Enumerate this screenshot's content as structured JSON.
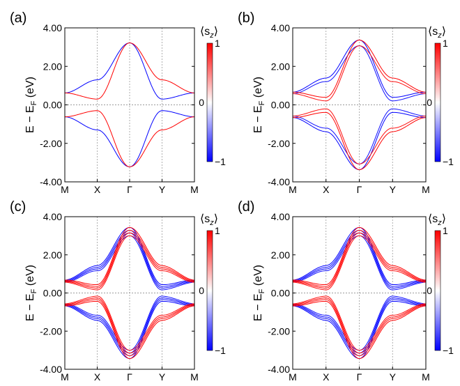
{
  "figure": {
    "colorbar": {
      "label": "⟨s_z⟩",
      "label_main": "⟨s",
      "label_sub": "z",
      "label_close": "⟩",
      "max_label": "1",
      "mid_label": "0",
      "min_label": "−1",
      "colors": {
        "negative": "#0000ff",
        "neutral": "#ffffff",
        "positive": "#ff0000"
      }
    },
    "ylabel_parts": {
      "main": "E − E",
      "sub": "F",
      "unit": " (eV)"
    }
  },
  "chart_data": [
    {
      "panel": "(a)",
      "type": "line",
      "title": "",
      "xlabel": "",
      "ylabel": "E − E_F (eV)",
      "x_ticks": [
        "M",
        "X",
        "Γ",
        "Y",
        "M"
      ],
      "y_ticks": [
        "4.00",
        "2.00",
        "0.00",
        "-2.00",
        "-4.00"
      ],
      "ylim": [
        -4,
        4
      ],
      "x_positions": [
        0,
        1,
        2,
        3,
        4
      ],
      "band_splitting": [
        0.0
      ],
      "series": [
        {
          "name": "conduction band, spin-down",
          "sz": -1,
          "x": [
            0,
            1,
            2,
            3,
            4
          ],
          "y": [
            0.62,
            1.3,
            3.22,
            0.3,
            0.62
          ]
        },
        {
          "name": "conduction band, spin-up",
          "sz": 1,
          "x": [
            0,
            1,
            2,
            3,
            4
          ],
          "y": [
            0.62,
            0.3,
            3.22,
            1.3,
            0.62
          ]
        },
        {
          "name": "valence band, spin-down",
          "sz": -1,
          "x": [
            0,
            1,
            2,
            3,
            4
          ],
          "y": [
            -0.62,
            -1.3,
            -3.22,
            -0.3,
            -0.62
          ]
        },
        {
          "name": "valence band, spin-up",
          "sz": 1,
          "x": [
            0,
            1,
            2,
            3,
            4
          ],
          "y": [
            -0.62,
            -0.3,
            -3.22,
            -1.3,
            -0.62
          ]
        }
      ]
    },
    {
      "panel": "(b)",
      "type": "line",
      "title": "",
      "xlabel": "",
      "ylabel": "E − E_F (eV)",
      "x_ticks": [
        "M",
        "X",
        "Γ",
        "Y",
        "M"
      ],
      "y_ticks": [
        "4.00",
        "2.00",
        "0.00",
        "-2.00",
        "-4.00"
      ],
      "ylim": [
        -4,
        4
      ],
      "x_positions": [
        0,
        1,
        2,
        3,
        4
      ],
      "band_splitting": [
        0.15,
        -0.15
      ],
      "series": [
        {
          "name": "conduction band, spin-down",
          "sz": -1,
          "x": [
            0,
            1,
            2,
            3,
            4
          ],
          "y": [
            0.62,
            1.3,
            3.22,
            0.3,
            0.62
          ]
        },
        {
          "name": "conduction band, spin-up",
          "sz": 1,
          "x": [
            0,
            1,
            2,
            3,
            4
          ],
          "y": [
            0.62,
            0.3,
            3.22,
            1.3,
            0.62
          ]
        },
        {
          "name": "valence band, spin-down",
          "sz": -1,
          "x": [
            0,
            1,
            2,
            3,
            4
          ],
          "y": [
            -0.62,
            -1.3,
            -3.22,
            -0.3,
            -0.62
          ]
        },
        {
          "name": "valence band, spin-up",
          "sz": 1,
          "x": [
            0,
            1,
            2,
            3,
            4
          ],
          "y": [
            -0.62,
            -0.3,
            -3.22,
            -1.3,
            -0.62
          ]
        }
      ]
    },
    {
      "panel": "(c)",
      "type": "line",
      "title": "",
      "xlabel": "",
      "ylabel": "E − E_F (eV)",
      "x_ticks": [
        "M",
        "X",
        "Γ",
        "Y",
        "M"
      ],
      "y_ticks": [
        "4.00",
        "2.00",
        "0.00",
        "-2.00",
        "-4.00"
      ],
      "ylim": [
        -4,
        4
      ],
      "x_positions": [
        0,
        1,
        2,
        3,
        4
      ],
      "band_splitting": [
        0.22,
        0.07,
        -0.07,
        -0.22
      ],
      "series": [
        {
          "name": "conduction band, spin-down",
          "sz": -1,
          "x": [
            0,
            1,
            2,
            3,
            4
          ],
          "y": [
            0.62,
            1.3,
            3.22,
            0.3,
            0.62
          ]
        },
        {
          "name": "conduction band, spin-up",
          "sz": 1,
          "x": [
            0,
            1,
            2,
            3,
            4
          ],
          "y": [
            0.62,
            0.3,
            3.22,
            1.3,
            0.62
          ]
        },
        {
          "name": "valence band, spin-down",
          "sz": -1,
          "x": [
            0,
            1,
            2,
            3,
            4
          ],
          "y": [
            -0.62,
            -1.3,
            -3.22,
            -0.3,
            -0.62
          ]
        },
        {
          "name": "valence band, spin-up",
          "sz": 1,
          "x": [
            0,
            1,
            2,
            3,
            4
          ],
          "y": [
            -0.62,
            -0.3,
            -3.22,
            -1.3,
            -0.62
          ]
        }
      ]
    },
    {
      "panel": "(d)",
      "type": "line",
      "title": "",
      "xlabel": "",
      "ylabel": "E − E_F (eV)",
      "x_ticks": [
        "M",
        "X",
        "Γ",
        "Y",
        "M"
      ],
      "y_ticks": [
        "4.00",
        "2.00",
        "0.00",
        "-2.00",
        "-4.00"
      ],
      "ylim": [
        -4,
        4
      ],
      "x_positions": [
        0,
        1,
        2,
        3,
        4
      ],
      "band_splitting": [
        0.22,
        0.07,
        -0.07,
        -0.22
      ],
      "series": [
        {
          "name": "conduction band, spin-down",
          "sz": -1,
          "x": [
            0,
            1,
            2,
            3,
            4
          ],
          "y": [
            0.62,
            1.3,
            3.22,
            0.3,
            0.62
          ]
        },
        {
          "name": "conduction band, spin-up",
          "sz": 1,
          "x": [
            0,
            1,
            2,
            3,
            4
          ],
          "y": [
            0.62,
            0.3,
            3.22,
            1.3,
            0.62
          ]
        },
        {
          "name": "valence band, spin-down",
          "sz": -1,
          "x": [
            0,
            1,
            2,
            3,
            4
          ],
          "y": [
            -0.62,
            -1.3,
            -3.22,
            -0.3,
            -0.62
          ]
        },
        {
          "name": "valence band, spin-up",
          "sz": 1,
          "x": [
            0,
            1,
            2,
            3,
            4
          ],
          "y": [
            -0.62,
            -0.3,
            -3.22,
            -1.3,
            -0.62
          ]
        }
      ]
    }
  ]
}
